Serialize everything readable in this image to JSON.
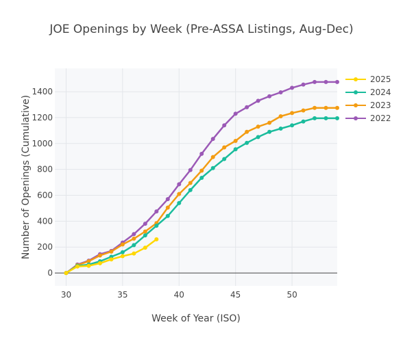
{
  "chart_data": {
    "type": "line",
    "title": "JOE Openings by Week (Pre-ASSA Listings, Aug-Dec)",
    "xlabel": "Week of Year (ISO)",
    "ylabel": "Number of Openings (Cumulative)",
    "xlim": [
      29,
      54
    ],
    "ylim": [
      -100,
      1580
    ],
    "x_ticks": [
      30,
      35,
      40,
      45,
      50
    ],
    "y_ticks": [
      0,
      200,
      400,
      600,
      800,
      1000,
      1200,
      1400
    ],
    "grid": true,
    "legend_position": "top-right",
    "series": [
      {
        "name": "2025",
        "color": "#FFD700",
        "x": [
          30,
          31,
          32,
          33,
          34,
          35,
          36,
          37,
          38
        ],
        "y": [
          0,
          50,
          55,
          75,
          105,
          130,
          150,
          195,
          260
        ]
      },
      {
        "name": "2024",
        "color": "#1ABC9C",
        "x": [
          30,
          31,
          32,
          33,
          34,
          35,
          36,
          37,
          38,
          39,
          40,
          41,
          42,
          43,
          44,
          45,
          46,
          47,
          48,
          49,
          50,
          51,
          52,
          53,
          54
        ],
        "y": [
          0,
          55,
          65,
          90,
          125,
          160,
          215,
          290,
          365,
          440,
          540,
          640,
          735,
          810,
          880,
          955,
          1005,
          1050,
          1090,
          1115,
          1140,
          1170,
          1195,
          1195,
          1195
        ]
      },
      {
        "name": "2023",
        "color": "#F39C12",
        "x": [
          30,
          31,
          32,
          33,
          34,
          35,
          36,
          37,
          38,
          39,
          40,
          41,
          42,
          43,
          44,
          45,
          46,
          47,
          48,
          49,
          50,
          51,
          52,
          53,
          54
        ],
        "y": [
          0,
          60,
          90,
          135,
          165,
          220,
          265,
          320,
          385,
          505,
          610,
          695,
          790,
          895,
          970,
          1020,
          1090,
          1130,
          1160,
          1210,
          1235,
          1255,
          1275,
          1275,
          1275
        ]
      },
      {
        "name": "2022",
        "color": "#9B59B6",
        "x": [
          30,
          31,
          32,
          33,
          34,
          35,
          36,
          37,
          38,
          39,
          40,
          41,
          42,
          43,
          44,
          45,
          46,
          47,
          48,
          49,
          50,
          51,
          52,
          53,
          54
        ],
        "y": [
          0,
          65,
          95,
          145,
          170,
          235,
          300,
          380,
          475,
          570,
          685,
          795,
          920,
          1035,
          1140,
          1230,
          1280,
          1330,
          1365,
          1395,
          1430,
          1455,
          1475,
          1475,
          1475
        ]
      }
    ]
  }
}
